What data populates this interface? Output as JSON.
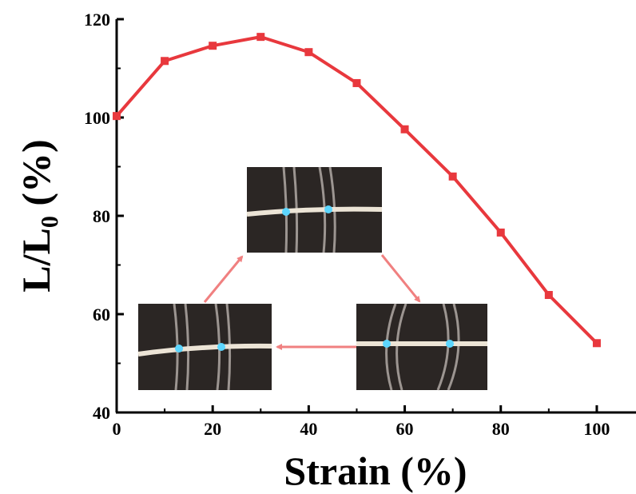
{
  "chart_data": {
    "type": "line",
    "x_label": "Strain (%)",
    "y_label": "L/L₀ (%)",
    "x": [
      0,
      10,
      20,
      30,
      40,
      50,
      60,
      70,
      80,
      90,
      100
    ],
    "series": [
      {
        "color": "#e8383d",
        "values": [
          100.3,
          111.5,
          114.6,
          116.4,
          113.3,
          107.0,
          97.6,
          88.0,
          76.6,
          63.9,
          54.1
        ]
      }
    ],
    "xlim": [
      0,
      108
    ],
    "xticks": [
      0,
      20,
      40,
      60,
      80,
      100
    ],
    "x_minor_ticks": [
      10,
      30,
      50,
      70,
      90
    ],
    "ylim": [
      40,
      120
    ],
    "yticks": [
      40,
      60,
      80,
      100,
      120
    ],
    "y_minor_ticks": [
      50,
      70,
      90,
      110
    ]
  }
}
